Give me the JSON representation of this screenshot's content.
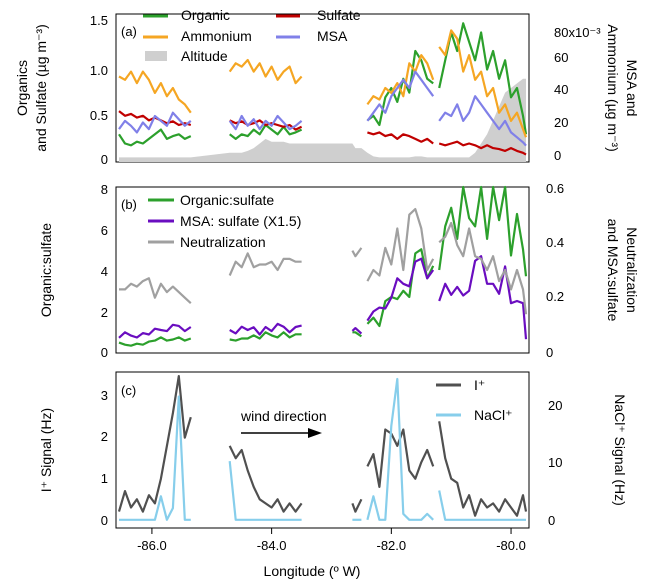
{
  "colors": {
    "organic": "#2ca02c",
    "sulfate": "#c00000",
    "ammonium": "#f5a623",
    "msa": "#8080e8",
    "altitude": "#cfcfcf",
    "org_sulfate": "#2ca02c",
    "msa_sulfate": "#6a0dc0",
    "neutralization": "#a0a0a0",
    "iodine": "#505050",
    "nacl": "#87ceeb"
  },
  "panels": {
    "a": {
      "tag": "(a)",
      "ylabel_left": [
        "Organics",
        "and Sulfate (µg m⁻³)"
      ],
      "ylabel_right": [
        "MSA and",
        "Ammonium (µg m⁻³)"
      ],
      "left_ticks": [
        "0",
        "0.5",
        "1.0",
        "1.5"
      ],
      "right_ticks": [
        "0",
        "20",
        "40",
        "60",
        "80x10⁻³"
      ],
      "legend": {
        "organic": "Organic",
        "sulfate": "Sulfate",
        "ammonium": "Ammonium",
        "msa": "MSA",
        "altitude": "Altitude"
      }
    },
    "b": {
      "tag": "(b)",
      "ylabel_left": "Organic:sulfate",
      "ylabel_right": [
        "Neutralization",
        "and MSA:sulfate"
      ],
      "left_ticks": [
        "0",
        "2",
        "4",
        "6",
        "8"
      ],
      "right_ticks": [
        "0",
        "0.2",
        "0.4",
        "0.6"
      ],
      "legend": {
        "org_sulfate": "Organic:sulfate",
        "msa_sulfate": "MSA: sulfate (X1.5)",
        "neutralization": "Neutralization"
      }
    },
    "c": {
      "tag": "(c)",
      "ylabel_left": "I⁺ Signal (Hz)",
      "ylabel_right": "NaCl⁺ Signal (Hz)",
      "left_ticks": [
        "0",
        "1",
        "2",
        "3"
      ],
      "right_ticks": [
        "0",
        "10",
        "20"
      ],
      "legend": {
        "iodine": "I⁺",
        "nacl": "NaCl⁺"
      },
      "annotation": "wind direction"
    }
  },
  "x_axis": {
    "label": "Longitude (º W)",
    "ticks": [
      "-86.0",
      "-84.0",
      "-82.0",
      "-80.0"
    ]
  },
  "chart_data": {
    "type": "line",
    "x_range": [
      -86.6,
      -79.7
    ],
    "segments": [
      [
        -86.55,
        -85.3
      ],
      [
        -84.7,
        -83.5
      ],
      [
        -82.65,
        -82.5
      ],
      [
        -82.4,
        -81.3
      ],
      [
        -81.2,
        -79.75
      ]
    ],
    "panels": [
      {
        "id": "a",
        "x": [
          -86.55,
          -86.45,
          -86.35,
          -86.25,
          -86.15,
          -86.05,
          -85.95,
          -85.85,
          -85.75,
          -85.65,
          -85.55,
          -85.45,
          -85.35,
          -84.7,
          -84.6,
          -84.5,
          -84.4,
          -84.3,
          -84.2,
          -84.1,
          -84.0,
          -83.9,
          -83.8,
          -83.7,
          -83.6,
          -83.5,
          -82.65,
          -82.6,
          -82.5,
          -82.4,
          -82.3,
          -82.2,
          -82.1,
          -82.0,
          -81.9,
          -81.8,
          -81.7,
          -81.6,
          -81.5,
          -81.4,
          -81.3,
          -81.2,
          -81.1,
          -81.0,
          -80.9,
          -80.8,
          -80.7,
          -80.6,
          -80.5,
          -80.4,
          -80.3,
          -80.2,
          -80.1,
          -80.0,
          -79.9,
          -79.8,
          -79.75
        ],
        "ylim_left": [
          0,
          1.6
        ],
        "ylim_right": [
          0,
          0.09
        ],
        "series": [
          {
            "name": "Organic",
            "axis": "left",
            "color_key": "organic",
            "values": [
              0.3,
              0.2,
              0.18,
              0.22,
              0.2,
              0.25,
              0.3,
              0.35,
              0.25,
              0.28,
              0.3,
              0.25,
              0.28,
              0.3,
              0.25,
              0.3,
              0.28,
              0.35,
              0.3,
              0.4,
              0.35,
              0.3,
              0.38,
              0.3,
              0.32,
              0.35,
              null,
              null,
              null,
              0.45,
              0.5,
              0.4,
              0.7,
              0.8,
              0.65,
              0.9,
              0.75,
              1.2,
              1.1,
              0.9,
              0.85,
              0.8,
              1.1,
              1.4,
              1.2,
              1.5,
              1.3,
              1.1,
              1.4,
              1.0,
              1.2,
              0.9,
              1.1,
              0.7,
              0.8,
              0.5,
              0.3
            ]
          },
          {
            "name": "Sulfate",
            "axis": "left",
            "color_key": "sulfate",
            "values": [
              0.55,
              0.5,
              0.52,
              0.48,
              0.5,
              0.45,
              0.48,
              0.45,
              0.42,
              0.44,
              0.4,
              0.42,
              0.4,
              0.45,
              0.42,
              0.44,
              0.4,
              0.42,
              0.45,
              0.4,
              0.42,
              0.4,
              0.38,
              0.4,
              0.35,
              0.38,
              null,
              null,
              null,
              0.32,
              0.3,
              0.32,
              0.28,
              0.3,
              0.25,
              0.3,
              0.28,
              0.25,
              0.22,
              0.25,
              0.2,
              0.2,
              0.18,
              0.2,
              0.22,
              0.18,
              0.2,
              0.18,
              0.15,
              0.18,
              0.15,
              0.14,
              0.12,
              0.15,
              0.12,
              0.1,
              0.08
            ]
          },
          {
            "name": "Ammonium",
            "axis": "right",
            "color_key": "ammonium",
            "values": [
              0.052,
              0.05,
              0.055,
              0.048,
              0.055,
              0.05,
              0.042,
              0.048,
              0.04,
              0.045,
              0.038,
              0.035,
              0.03,
              0.055,
              0.06,
              0.058,
              0.062,
              0.055,
              0.06,
              0.052,
              0.058,
              0.05,
              0.055,
              0.058,
              0.048,
              0.052,
              null,
              null,
              null,
              0.035,
              0.04,
              0.038,
              0.045,
              0.042,
              0.048,
              0.04,
              0.06,
              0.055,
              0.065,
              0.06,
              0.05,
              0.07,
              0.065,
              0.08,
              0.075,
              0.055,
              0.065,
              0.05,
              0.055,
              0.04,
              0.045,
              0.03,
              0.035,
              0.025,
              0.03,
              0.02,
              0.015
            ]
          },
          {
            "name": "MSA",
            "axis": "right",
            "color_key": "msa",
            "values": [
              0.02,
              0.025,
              0.022,
              0.018,
              0.024,
              0.02,
              0.028,
              0.025,
              0.022,
              0.03,
              0.026,
              0.022,
              0.025,
              0.025,
              0.02,
              0.028,
              0.022,
              0.026,
              0.02,
              0.025,
              0.022,
              0.028,
              0.024,
              0.02,
              0.022,
              0.025,
              null,
              null,
              null,
              0.025,
              0.03,
              0.035,
              0.03,
              0.04,
              0.045,
              0.05,
              0.045,
              0.055,
              0.05,
              0.045,
              0.04,
              0.025,
              0.03,
              0.028,
              0.035,
              0.025,
              0.03,
              0.04,
              0.035,
              0.03,
              0.025,
              0.02,
              0.025,
              0.018,
              0.015,
              0.012,
              0.01
            ]
          },
          {
            "name": "Altitude",
            "axis": "left",
            "color_key": "altitude",
            "fill": true,
            "values": [
              0.05,
              0.05,
              0.05,
              0.05,
              0.05,
              0.05,
              0.05,
              0.05,
              0.05,
              0.05,
              0.05,
              0.05,
              0.05,
              0.1,
              0.1,
              0.1,
              0.12,
              0.15,
              0.2,
              0.25,
              0.22,
              0.22,
              0.22,
              0.2,
              0.2,
              0.2,
              0.2,
              0.15,
              0.15,
              0.1,
              0.06,
              0.05,
              0.05,
              0.05,
              0.05,
              0.05,
              0.05,
              0.06,
              0.06,
              0.05,
              0.05,
              0.05,
              0.05,
              0.05,
              0.05,
              0.05,
              0.05,
              0.1,
              0.2,
              0.3,
              0.45,
              0.6,
              0.75,
              0.8,
              0.85,
              0.9,
              0.9
            ]
          }
        ]
      },
      {
        "id": "b",
        "x": [
          -86.55,
          -86.45,
          -86.35,
          -86.25,
          -86.15,
          -86.05,
          -85.95,
          -85.85,
          -85.75,
          -85.65,
          -85.55,
          -85.45,
          -85.35,
          -84.7,
          -84.6,
          -84.5,
          -84.4,
          -84.3,
          -84.2,
          -84.1,
          -84.0,
          -83.9,
          -83.8,
          -83.7,
          -83.6,
          -83.5,
          -82.65,
          -82.6,
          -82.5,
          -82.4,
          -82.3,
          -82.2,
          -82.1,
          -82.0,
          -81.9,
          -81.8,
          -81.7,
          -81.6,
          -81.5,
          -81.4,
          -81.3,
          -81.2,
          -81.1,
          -81.0,
          -80.9,
          -80.8,
          -80.7,
          -80.6,
          -80.5,
          -80.4,
          -80.3,
          -80.2,
          -80.1,
          -80.0,
          -79.9,
          -79.8,
          -79.75
        ],
        "ylim_left": [
          0,
          8
        ],
        "ylim_right": [
          0,
          0.6
        ],
        "series": [
          {
            "name": "Organic:sulfate",
            "axis": "left",
            "color_key": "org_sulfate",
            "values": [
              0.5,
              0.4,
              0.35,
              0.45,
              0.4,
              0.55,
              0.6,
              0.75,
              0.6,
              0.65,
              0.75,
              0.6,
              0.7,
              0.65,
              0.6,
              0.7,
              0.7,
              0.85,
              0.7,
              1.0,
              0.85,
              0.75,
              1.0,
              0.75,
              0.9,
              0.9,
              1.0,
              1.0,
              0.8,
              1.4,
              1.7,
              1.3,
              2.5,
              2.7,
              2.6,
              3.0,
              2.7,
              4.8,
              5.0,
              3.6,
              4.2,
              4.0,
              6.1,
              7.0,
              5.5,
              8.3,
              6.5,
              6.1,
              9.3,
              5.5,
              8.0,
              6.4,
              9.1,
              4.7,
              6.7,
              5.0,
              3.7
            ]
          },
          {
            "name": "MSA: sulfate (X1.5)",
            "axis": "right",
            "color_key": "msa_sulfate",
            "values": [
              0.055,
              0.075,
              0.063,
              0.056,
              0.072,
              0.067,
              0.088,
              0.083,
              0.079,
              0.102,
              0.098,
              0.079,
              0.094,
              0.083,
              0.071,
              0.095,
              0.083,
              0.093,
              0.067,
              0.094,
              0.079,
              0.105,
              0.095,
              0.075,
              0.094,
              0.099,
              0.08,
              0.09,
              0.07,
              0.117,
              0.15,
              0.164,
              0.161,
              0.2,
              0.27,
              0.25,
              0.241,
              0.33,
              0.341,
              0.27,
              0.3,
              0.188,
              0.25,
              0.21,
              0.239,
              0.208,
              0.225,
              0.333,
              0.35,
              0.25,
              0.25,
              0.214,
              0.313,
              0.18,
              0.188,
              0.18,
              0.05
            ]
          },
          {
            "name": "Neutralization",
            "axis": "right",
            "color_key": "neutralization",
            "values": [
              0.23,
              0.23,
              0.25,
              0.24,
              0.26,
              0.27,
              0.2,
              0.25,
              0.22,
              0.24,
              0.22,
              0.2,
              0.18,
              0.28,
              0.33,
              0.31,
              0.36,
              0.31,
              0.32,
              0.32,
              0.33,
              0.3,
              0.34,
              0.34,
              0.33,
              0.33,
              0.37,
              0.35,
              0.38,
              0.26,
              0.3,
              0.28,
              0.38,
              0.32,
              0.45,
              0.3,
              0.5,
              0.52,
              0.45,
              0.3,
              0.34,
              0.4,
              0.42,
              0.47,
              0.39,
              0.35,
              0.45,
              0.35,
              0.34,
              0.3,
              0.35,
              0.26,
              0.3,
              0.23,
              0.3,
              0.23,
              0.14
            ]
          }
        ]
      },
      {
        "id": "c",
        "x": [
          -86.55,
          -86.45,
          -86.35,
          -86.25,
          -86.15,
          -86.05,
          -85.95,
          -85.85,
          -85.75,
          -85.65,
          -85.55,
          -85.45,
          -85.35,
          -84.7,
          -84.6,
          -84.5,
          -84.4,
          -84.3,
          -84.2,
          -84.1,
          -84.0,
          -83.9,
          -83.8,
          -83.7,
          -83.6,
          -83.5,
          -82.65,
          -82.6,
          -82.5,
          -82.4,
          -82.3,
          -82.2,
          -82.1,
          -82.0,
          -81.9,
          -81.8,
          -81.7,
          -81.6,
          -81.5,
          -81.4,
          -81.3,
          -81.2,
          -81.1,
          -81.0,
          -80.9,
          -80.8,
          -80.7,
          -80.6,
          -80.5,
          -80.4,
          -80.3,
          -80.2,
          -80.1,
          -80.0,
          -79.9,
          -79.8,
          -79.75
        ],
        "ylim_left": [
          -0.2,
          3.6
        ],
        "ylim_right": [
          -1.4,
          25.2
        ],
        "series": [
          {
            "name": "I⁺",
            "axis": "left",
            "color_key": "iodine",
            "values": [
              0.2,
              0.7,
              0.3,
              0.5,
              0.2,
              0.6,
              0.4,
              1.0,
              1.8,
              2.6,
              3.5,
              2.0,
              2.5,
              1.8,
              1.5,
              1.7,
              1.2,
              0.8,
              0.5,
              0.4,
              0.3,
              0.5,
              0.2,
              0.4,
              0.2,
              0.4,
              0.4,
              0.2,
              0.5,
              1.3,
              1.6,
              0.8,
              2.2,
              2.1,
              1.8,
              2.2,
              1.2,
              1.0,
              1.4,
              1.7,
              1.3,
              2.4,
              1.5,
              1.0,
              0.9,
              0.3,
              0.6,
              0.1,
              0.5,
              0.3,
              0.4,
              0.2,
              0.5,
              0.3,
              0.1,
              0.6,
              0.2
            ]
          },
          {
            "name": "NaCl⁺",
            "axis": "right",
            "color_key": "nacl",
            "values": [
              0,
              0,
              0,
              0,
              0,
              0,
              0,
              4,
              0,
              2,
              21,
              0,
              0,
              10,
              0,
              0,
              0,
              0,
              0,
              0,
              0,
              0,
              0,
              0,
              0,
              0,
              0,
              0,
              0,
              0,
              4,
              0,
              0,
              16,
              24,
              1,
              0,
              0,
              0,
              1,
              0,
              5,
              0,
              0,
              0,
              0,
              0,
              0,
              0,
              0,
              0,
              0,
              0,
              0,
              0,
              0,
              0
            ]
          }
        ]
      }
    ]
  }
}
